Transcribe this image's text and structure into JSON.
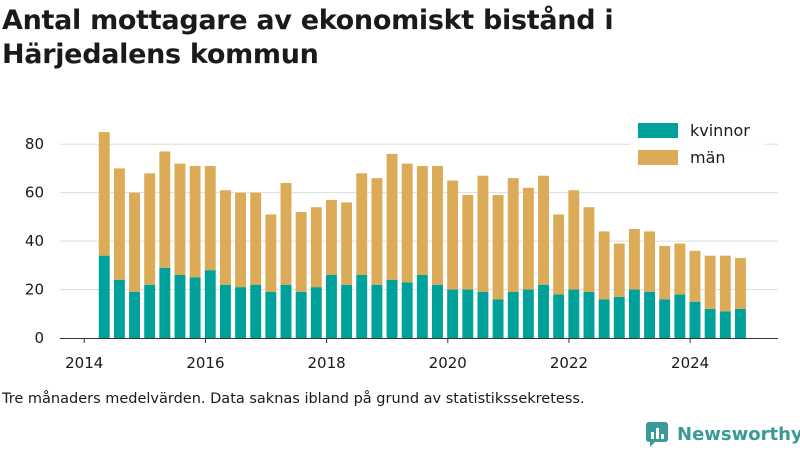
{
  "title": "Antal mottagare av ekonomiskt bistånd i Härjedalens kommun",
  "caption": "Tre månaders medelvärden. Data saknas ibland på grund av statistikssekretess.",
  "brand": {
    "name": "Newsworthy",
    "icon": "bar-chart-logo-icon",
    "color": "#3a9a95"
  },
  "colors": {
    "kvinnor": "#00a19a",
    "man": "#dbab57",
    "grid": "#dddddd",
    "axis": "#333333"
  },
  "chart_data": {
    "type": "bar",
    "stacked": true,
    "title": "Antal mottagare av ekonomiskt bistånd i Härjedalens kommun",
    "xlabel": "",
    "ylabel": "",
    "xlim": [
      2013.6,
      2025.45
    ],
    "ylim": [
      0,
      90
    ],
    "yticks": [
      0,
      20,
      40,
      60,
      80
    ],
    "xticks": [
      2014,
      2016,
      2018,
      2020,
      2022,
      2024
    ],
    "grid": true,
    "legend_position": "top-right",
    "x": [
      2014.33,
      2014.58,
      2014.83,
      2015.08,
      2015.33,
      2015.58,
      2015.83,
      2016.08,
      2016.33,
      2016.58,
      2016.83,
      2017.08,
      2017.33,
      2017.58,
      2017.83,
      2018.08,
      2018.33,
      2018.58,
      2018.83,
      2019.08,
      2019.33,
      2019.58,
      2019.83,
      2020.08,
      2020.33,
      2020.58,
      2020.83,
      2021.08,
      2021.33,
      2021.58,
      2021.83,
      2022.08,
      2022.33,
      2022.58,
      2022.83,
      2023.08,
      2023.33,
      2023.58,
      2023.83,
      2024.08,
      2024.33,
      2024.58,
      2024.83
    ],
    "series": [
      {
        "name": "kvinnor",
        "values": [
          34,
          24,
          19,
          22,
          29,
          26,
          25,
          28,
          22,
          21,
          22,
          19,
          22,
          19,
          21,
          26,
          22,
          26,
          22,
          24,
          23,
          26,
          22,
          20,
          20,
          19,
          16,
          19,
          20,
          22,
          18,
          20,
          19,
          16,
          17,
          20,
          19,
          16,
          18,
          15,
          12,
          11,
          12
        ]
      },
      {
        "name": "män",
        "values": [
          51,
          46,
          41,
          46,
          48,
          46,
          46,
          43,
          39,
          39,
          38,
          32,
          42,
          33,
          33,
          31,
          34,
          42,
          44,
          52,
          49,
          45,
          49,
          45,
          39,
          48,
          43,
          47,
          42,
          45,
          33,
          41,
          35,
          28,
          22,
          25,
          25,
          22,
          21,
          21,
          22,
          23,
          21
        ]
      }
    ]
  }
}
